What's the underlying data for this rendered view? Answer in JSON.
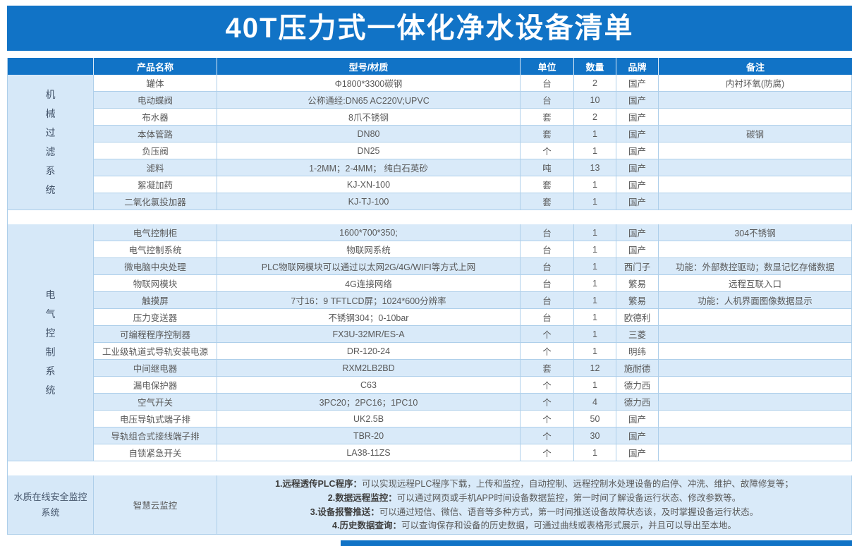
{
  "title": "40T压力式一体化净水设备清单",
  "colors": {
    "accent": "#1173C6",
    "rowalt": "#D9EAF9",
    "groupbg": "#D6E8F8",
    "border": "#AECFEA",
    "text": "#595959",
    "grouptext": "#44546A",
    "boldtext": "#3F3F3F"
  },
  "columns": [
    "产品名称",
    "型号/材质",
    "单位",
    "数量",
    "品牌",
    "备注"
  ],
  "sections": [
    {
      "group": "机械过滤系统",
      "orientation": "vertical",
      "altFirst": false,
      "rows": [
        {
          "name": "罐体",
          "model": "Φ1800*3300碳钢",
          "unit": "台",
          "qty": "2",
          "brand": "国产",
          "remark": "内衬环氧(防腐)"
        },
        {
          "name": "电动蝶阀",
          "model": "公称通经:DN65 AC220V;UPVC",
          "unit": "台",
          "qty": "10",
          "brand": "国产",
          "remark": ""
        },
        {
          "name": "布水器",
          "model": "8爪不锈钢",
          "unit": "套",
          "qty": "2",
          "brand": "国产",
          "remark": ""
        },
        {
          "name": "本体管路",
          "model": "DN80",
          "unit": "套",
          "qty": "1",
          "brand": "国产",
          "remark": "碳钢"
        },
        {
          "name": "负压阀",
          "model": "DN25",
          "unit": "个",
          "qty": "1",
          "brand": "国产",
          "remark": ""
        },
        {
          "name": "滤料",
          "model": "1-2MM；2-4MM；  纯白石英砂",
          "unit": "吨",
          "qty": "13",
          "brand": "国产",
          "remark": ""
        },
        {
          "name": "絮凝加药",
          "model": "KJ-XN-100",
          "unit": "套",
          "qty": "1",
          "brand": "国产",
          "remark": ""
        },
        {
          "name": "二氧化氯投加器",
          "model": "KJ-TJ-100",
          "unit": "套",
          "qty": "1",
          "brand": "国产",
          "remark": ""
        }
      ]
    },
    {
      "group": "电气控制系统",
      "orientation": "vertical",
      "altFirst": true,
      "rows": [
        {
          "name": "电气控制柜",
          "model": "1600*700*350;",
          "unit": "台",
          "qty": "1",
          "brand": "国产",
          "remark": "304不锈钢"
        },
        {
          "name": "电气控制系统",
          "model": "物联网系统",
          "unit": "台",
          "qty": "1",
          "brand": "国产",
          "remark": ""
        },
        {
          "name": "微电脑中央处理",
          "model": "PLC物联网模块可以通过以太网2G/4G/WIFI等方式上网",
          "unit": "台",
          "qty": "1",
          "brand": "西门子",
          "remark": "功能：外部数控驱动；数显记忆存储数据"
        },
        {
          "name": "物联网模块",
          "model": "4G连接网络",
          "unit": "台",
          "qty": "1",
          "brand": "繁易",
          "remark": "远程互联入口"
        },
        {
          "name": "触摸屏",
          "model": "7寸16：9 TFTLCD屏；1024*600分辨率",
          "unit": "台",
          "qty": "1",
          "brand": "繁易",
          "remark": "功能：人机界面图像数据显示"
        },
        {
          "name": "压力变送器",
          "model": "不锈钢304；0-10bar",
          "unit": "台",
          "qty": "1",
          "brand": "欧德利",
          "remark": ""
        },
        {
          "name": "可编程程序控制器",
          "model": "FX3U-32MR/ES-A",
          "unit": "个",
          "qty": "1",
          "brand": "三菱",
          "remark": ""
        },
        {
          "name": "工业级轨道式导轨安装电源",
          "model": "DR-120-24",
          "unit": "个",
          "qty": "1",
          "brand": "明纬",
          "remark": ""
        },
        {
          "name": "中间继电器",
          "model": "RXM2LB2BD",
          "unit": "套",
          "qty": "12",
          "brand": "施耐德",
          "remark": ""
        },
        {
          "name": "漏电保护器",
          "model": "C63",
          "unit": "个",
          "qty": "1",
          "brand": "德力西",
          "remark": ""
        },
        {
          "name": "空气开关",
          "model": "3PC20；2PC16；1PC10",
          "unit": "个",
          "qty": "4",
          "brand": "德力西",
          "remark": ""
        },
        {
          "name": "电压导轨式端子排",
          "model": "UK2.5B",
          "unit": "个",
          "qty": "50",
          "brand": "国产",
          "remark": ""
        },
        {
          "name": "导轨组合式接线端子排",
          "model": "TBR-20",
          "unit": "个",
          "qty": "30",
          "brand": "国产",
          "remark": ""
        },
        {
          "name": "自锁紧急开关",
          "model": "LA38-11ZS",
          "unit": "个",
          "qty": "1",
          "brand": "国产",
          "remark": ""
        }
      ]
    },
    {
      "group": "水质在线安全监控\n系统",
      "orientation": "horizontal",
      "type": "features",
      "name": "智慧云监控",
      "features": [
        {
          "label": "1.远程透传PLC程序：",
          "text": "可以实现远程PLC程序下载，上传和监控，自动控制、远程控制水处理设备的启停、冲洗、维护、故障修复等；"
        },
        {
          "label": "2.数据远程监控：",
          "text": "可以通过网页或手机APP时间设备数据监控，第一时间了解设备运行状态、修改参数等。"
        },
        {
          "label": "3.设备报警推送：",
          "text": "可以通过短信、微信、语音等多种方式，第一时间推送设备故障状态该，及时掌握设备运行状态。"
        },
        {
          "label": "4.历史数据查询：",
          "text": "可以查询保存和设备的历史数据，可通过曲线或表格形式展示，并且可以导出至本地。"
        }
      ]
    }
  ]
}
